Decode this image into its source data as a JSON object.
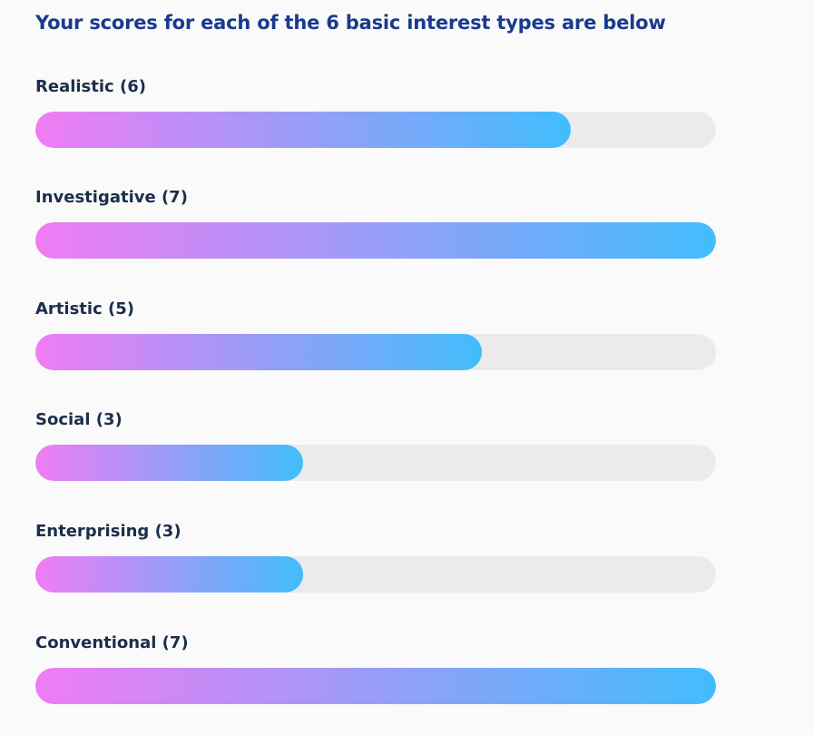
{
  "heading": "Your scores for each of the 6 basic interest types are below",
  "chart_data": {
    "type": "bar",
    "orientation": "horizontal",
    "categories": [
      "Realistic (6)",
      "Investigative (7)",
      "Artistic (5)",
      "Social (3)",
      "Enterprising (3)",
      "Conventional (7)"
    ],
    "values": [
      6,
      7,
      5,
      3,
      3,
      7
    ],
    "xlim": [
      0,
      7
    ],
    "grid": false,
    "colors": {
      "bar_gradient_start": "#f07cf4",
      "bar_gradient_end": "#41bdfb",
      "track": "#ebebeb",
      "label": "#1b2e4a",
      "heading": "#1a3a8f"
    }
  }
}
